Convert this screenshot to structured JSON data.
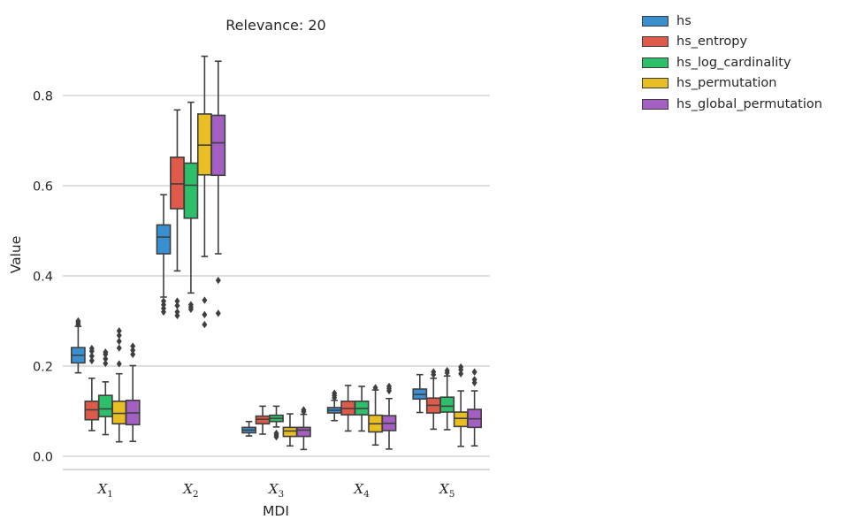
{
  "chart_data": {
    "type": "box",
    "title": "Relevance: 20",
    "xlabel": "MDI",
    "ylabel": "Value",
    "ylim": [
      -0.03,
      0.92
    ],
    "yticks": [
      0.0,
      0.2,
      0.4,
      0.6,
      0.8
    ],
    "ytick_labels": [
      "0.0",
      "0.2",
      "0.4",
      "0.6",
      "0.8"
    ],
    "grid": "horizontal",
    "legend_position": "outside-top-right",
    "categories": [
      {
        "base": "X",
        "sub": "1"
      },
      {
        "base": "X",
        "sub": "2"
      },
      {
        "base": "X",
        "sub": "3"
      },
      {
        "base": "X",
        "sub": "4"
      },
      {
        "base": "X",
        "sub": "5"
      }
    ],
    "series": [
      {
        "name": "hs",
        "color": "#3a8fd1",
        "boxes": [
          {
            "q1": 0.207,
            "median": 0.224,
            "q3": 0.241,
            "whislo": 0.185,
            "whishi": 0.288,
            "fliers": [
              0.292,
              0.296,
              0.3
            ]
          },
          {
            "q1": 0.449,
            "median": 0.486,
            "q3": 0.513,
            "whislo": 0.353,
            "whishi": 0.58,
            "fliers": [
              0.32,
              0.328,
              0.336,
              0.344
            ]
          },
          {
            "q1": 0.052,
            "median": 0.058,
            "q3": 0.064,
            "whislo": 0.045,
            "whishi": 0.077,
            "fliers": []
          },
          {
            "q1": 0.096,
            "median": 0.102,
            "q3": 0.108,
            "whislo": 0.079,
            "whishi": 0.124,
            "fliers": [
              0.13,
              0.135,
              0.14
            ]
          },
          {
            "q1": 0.127,
            "median": 0.137,
            "q3": 0.149,
            "whislo": 0.097,
            "whishi": 0.181,
            "fliers": []
          }
        ]
      },
      {
        "name": "hs_entropy",
        "color": "#e05a4a",
        "boxes": [
          {
            "q1": 0.081,
            "median": 0.103,
            "q3": 0.122,
            "whislo": 0.057,
            "whishi": 0.173,
            "fliers": [
              0.212,
              0.222,
              0.233,
              0.239
            ]
          },
          {
            "q1": 0.549,
            "median": 0.604,
            "q3": 0.663,
            "whislo": 0.411,
            "whishi": 0.768,
            "fliers": [
              0.312,
              0.32,
              0.334,
              0.344
            ]
          },
          {
            "q1": 0.072,
            "median": 0.082,
            "q3": 0.089,
            "whislo": 0.049,
            "whishi": 0.111,
            "fliers": []
          },
          {
            "q1": 0.092,
            "median": 0.106,
            "q3": 0.122,
            "whislo": 0.056,
            "whishi": 0.157,
            "fliers": []
          },
          {
            "q1": 0.096,
            "median": 0.113,
            "q3": 0.129,
            "whislo": 0.06,
            "whishi": 0.173,
            "fliers": [
              0.181,
              0.187
            ]
          }
        ]
      },
      {
        "name": "hs_log_cardinality",
        "color": "#2ebf6a",
        "boxes": [
          {
            "q1": 0.088,
            "median": 0.105,
            "q3": 0.135,
            "whislo": 0.048,
            "whishi": 0.165,
            "fliers": [
              0.206,
              0.216,
              0.226,
              0.231
            ]
          },
          {
            "q1": 0.528,
            "median": 0.601,
            "q3": 0.65,
            "whislo": 0.362,
            "whishi": 0.785,
            "fliers": [
              0.326,
              0.331,
              0.336
            ]
          },
          {
            "q1": 0.077,
            "median": 0.084,
            "q3": 0.091,
            "whislo": 0.065,
            "whishi": 0.111,
            "fliers": [
              0.043,
              0.047,
              0.051
            ]
          },
          {
            "q1": 0.092,
            "median": 0.106,
            "q3": 0.122,
            "whislo": 0.056,
            "whishi": 0.155,
            "fliers": []
          },
          {
            "q1": 0.098,
            "median": 0.111,
            "q3": 0.131,
            "whislo": 0.059,
            "whishi": 0.178,
            "fliers": [
              0.185,
              0.19
            ]
          }
        ]
      },
      {
        "name": "hs_permutation",
        "color": "#e9be22",
        "boxes": [
          {
            "q1": 0.072,
            "median": 0.095,
            "q3": 0.122,
            "whislo": 0.032,
            "whishi": 0.183,
            "fliers": [
              0.205,
              0.24,
              0.255,
              0.268,
              0.278
            ]
          },
          {
            "q1": 0.624,
            "median": 0.69,
            "q3": 0.759,
            "whislo": 0.443,
            "whishi": 0.887,
            "fliers": [
              0.292,
              0.314,
              0.346
            ]
          },
          {
            "q1": 0.044,
            "median": 0.056,
            "q3": 0.064,
            "whislo": 0.023,
            "whishi": 0.094,
            "fliers": []
          },
          {
            "q1": 0.054,
            "median": 0.072,
            "q3": 0.091,
            "whislo": 0.025,
            "whishi": 0.147,
            "fliers": [
              0.152
            ]
          },
          {
            "q1": 0.066,
            "median": 0.084,
            "q3": 0.098,
            "whislo": 0.022,
            "whishi": 0.145,
            "fliers": [
              0.183,
              0.192,
              0.198
            ]
          }
        ]
      },
      {
        "name": "hs_global_permutation",
        "color": "#a35fc1",
        "boxes": [
          {
            "q1": 0.07,
            "median": 0.096,
            "q3": 0.124,
            "whislo": 0.033,
            "whishi": 0.201,
            "fliers": [
              0.226,
              0.235,
              0.244
            ]
          },
          {
            "q1": 0.623,
            "median": 0.695,
            "q3": 0.756,
            "whislo": 0.449,
            "whishi": 0.876,
            "fliers": [
              0.317,
              0.39
            ]
          },
          {
            "q1": 0.044,
            "median": 0.058,
            "q3": 0.064,
            "whislo": 0.015,
            "whishi": 0.093,
            "fliers": [
              0.099,
              0.103
            ]
          },
          {
            "q1": 0.057,
            "median": 0.073,
            "q3": 0.09,
            "whislo": 0.016,
            "whishi": 0.128,
            "fliers": [
              0.145,
              0.15,
              0.155
            ]
          },
          {
            "q1": 0.064,
            "median": 0.083,
            "q3": 0.104,
            "whislo": 0.023,
            "whishi": 0.145,
            "fliers": [
              0.163,
              0.17,
              0.187
            ]
          }
        ]
      }
    ]
  }
}
